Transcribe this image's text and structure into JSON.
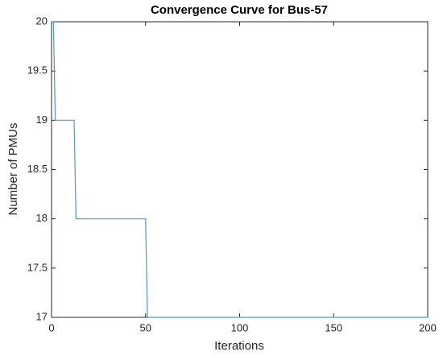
{
  "chart_data": {
    "type": "line",
    "title": "Convergence Curve for Bus-57",
    "x_label": "Iterations",
    "y_label": "Number of PMUs",
    "x": [
      0,
      1,
      2,
      12,
      13,
      50,
      51,
      200
    ],
    "values": [
      20,
      20,
      19,
      19,
      18,
      18,
      17,
      17
    ],
    "color": "#4f9bc4",
    "xlim": [
      0,
      200
    ],
    "xticks": [
      0,
      50,
      100,
      150,
      200
    ],
    "ylim": [
      17,
      20
    ],
    "yticks": [
      17,
      17.5,
      18,
      18.5,
      19,
      19.5,
      20
    ],
    "grid": false
  }
}
